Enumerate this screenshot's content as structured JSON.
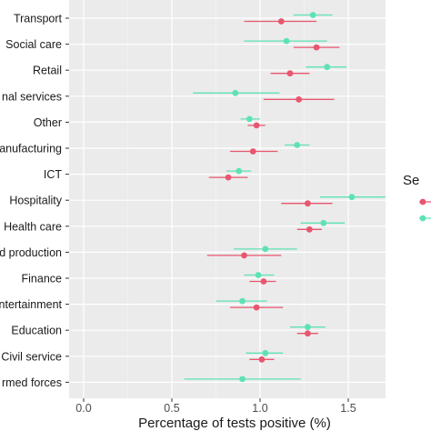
{
  "chart_data": {
    "type": "forest-plot",
    "xlabel": "Percentage of tests positive (%)",
    "xlim": [
      0,
      1.75
    ],
    "xticks": [
      "0.0",
      "0.5",
      "1.0",
      "1.5"
    ],
    "grid": "on",
    "legend": {
      "title_visible": "Se",
      "position": "right"
    },
    "colors": {
      "series_a": "#e8566f",
      "series_b": "#5ee2b4",
      "panel": "#ebebeb",
      "grid": "#ffffff"
    },
    "categories": [
      "Transport",
      "Social care",
      "Retail",
      "nal services",
      "Other",
      "anufacturing",
      "ICT",
      "Hospitality",
      "Health care",
      "d production",
      "Finance",
      "ntertainment",
      "Education",
      "Civil service",
      "rmed forces"
    ],
    "series": [
      {
        "color_key": "series_a",
        "points": [
          {
            "category": "Transport",
            "x": 1.12,
            "low": 0.91,
            "high": 1.32
          },
          {
            "category": "Social care",
            "x": 1.32,
            "low": 1.19,
            "high": 1.45
          },
          {
            "category": "Retail",
            "x": 1.17,
            "low": 1.06,
            "high": 1.28
          },
          {
            "category": "nal services",
            "x": 1.22,
            "low": 1.02,
            "high": 1.42
          },
          {
            "category": "Other",
            "x": 0.98,
            "low": 0.93,
            "high": 1.03
          },
          {
            "category": "anufacturing",
            "x": 0.96,
            "low": 0.83,
            "high": 1.1
          },
          {
            "category": "ICT",
            "x": 0.82,
            "low": 0.71,
            "high": 0.93
          },
          {
            "category": "Hospitality",
            "x": 1.27,
            "low": 1.12,
            "high": 1.41
          },
          {
            "category": "Health care",
            "x": 1.28,
            "low": 1.21,
            "high": 1.35
          },
          {
            "category": "d production",
            "x": 0.91,
            "low": 0.7,
            "high": 1.12
          },
          {
            "category": "Finance",
            "x": 1.02,
            "low": 0.94,
            "high": 1.09
          },
          {
            "category": "ntertainment",
            "x": 0.98,
            "low": 0.83,
            "high": 1.13
          },
          {
            "category": "Education",
            "x": 1.27,
            "low": 1.21,
            "high": 1.33
          },
          {
            "category": "Civil service",
            "x": 1.01,
            "low": 0.94,
            "high": 1.08
          }
        ]
      },
      {
        "color_key": "series_b",
        "points": [
          {
            "category": "Transport",
            "x": 1.3,
            "low": 1.19,
            "high": 1.41
          },
          {
            "category": "Social care",
            "x": 1.15,
            "low": 0.91,
            "high": 1.38
          },
          {
            "category": "Retail",
            "x": 1.38,
            "low": 1.26,
            "high": 1.49
          },
          {
            "category": "nal services",
            "x": 0.86,
            "low": 0.62,
            "high": 1.11
          },
          {
            "category": "Other",
            "x": 0.94,
            "low": 0.89,
            "high": 1.0
          },
          {
            "category": "anufacturing",
            "x": 1.21,
            "low": 1.14,
            "high": 1.28
          },
          {
            "category": "ICT",
            "x": 0.88,
            "low": 0.81,
            "high": 0.95
          },
          {
            "category": "Hospitality",
            "x": 1.52,
            "low": 1.34,
            "high": 1.71
          },
          {
            "category": "Health care",
            "x": 1.36,
            "low": 1.23,
            "high": 1.48
          },
          {
            "category": "d production",
            "x": 1.03,
            "low": 0.85,
            "high": 1.21
          },
          {
            "category": "Finance",
            "x": 0.99,
            "low": 0.91,
            "high": 1.08
          },
          {
            "category": "ntertainment",
            "x": 0.9,
            "low": 0.75,
            "high": 1.04
          },
          {
            "category": "Education",
            "x": 1.27,
            "low": 1.17,
            "high": 1.37
          },
          {
            "category": "Civil service",
            "x": 1.03,
            "low": 0.92,
            "high": 1.13
          },
          {
            "category": "rmed forces",
            "x": 0.9,
            "low": 0.57,
            "high": 1.23
          }
        ]
      }
    ]
  }
}
